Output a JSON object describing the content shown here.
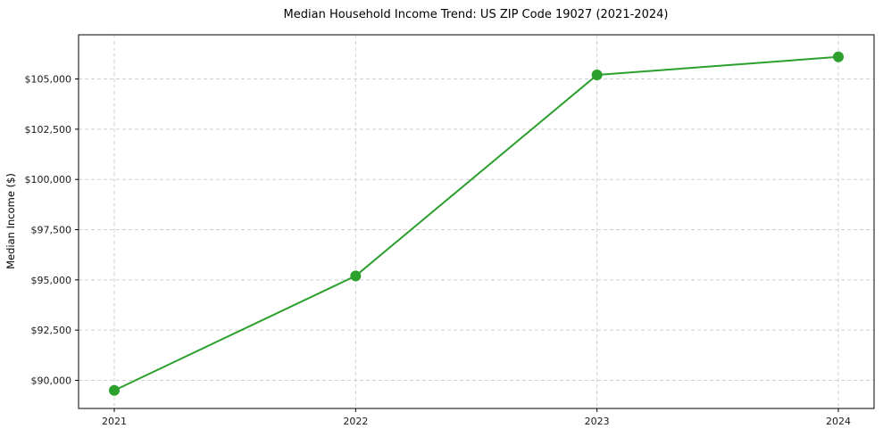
{
  "chart_data": {
    "type": "line",
    "title": "Median Household Income Trend: US ZIP Code 19027 (2021-2024)",
    "xlabel": "",
    "ylabel": "Median Income ($)",
    "x": [
      2021,
      2022,
      2023,
      2024
    ],
    "xtick_labels": [
      "2021",
      "2022",
      "2023",
      "2024"
    ],
    "series": [
      {
        "name": "Median Household Income",
        "values": [
          89500,
          95200,
          105200,
          106100
        ],
        "color": "#2ca02c",
        "marker": "circle",
        "marker_radius": 6,
        "line_width": 2
      }
    ],
    "yticks": [
      90000,
      92500,
      95000,
      97500,
      100000,
      102500,
      105000
    ],
    "ytick_labels": [
      "$90,000",
      "$92,500",
      "$95,000",
      "$97,500",
      "$100,000",
      "$102,500",
      "$105,000"
    ],
    "ylim": [
      88600,
      107200
    ],
    "grid": true,
    "grid_style": "dashed",
    "legend": "none",
    "colors": {
      "line": "#2ca02c",
      "grid": "#cfcfcf",
      "frame": "#000000",
      "background": "#ffffff"
    }
  }
}
